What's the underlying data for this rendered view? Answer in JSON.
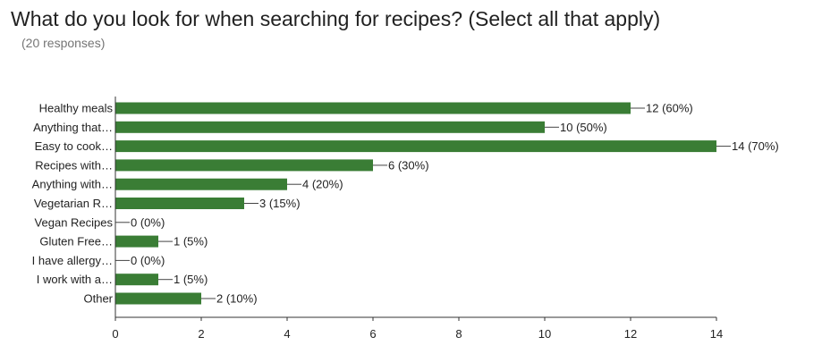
{
  "title": "What do you look for when searching for recipes? (Select all that apply)",
  "subtitle": "(20 responses)",
  "chart_data": {
    "type": "bar",
    "orientation": "horizontal",
    "categories": [
      "Healthy meals",
      "Anything that…",
      "Easy to cook…",
      "Recipes with…",
      "Anything with…",
      "Vegetarian R…",
      "Vegan Recipes",
      "Gluten Free…",
      "I have allergy…",
      "I work with a…",
      "Other"
    ],
    "values": [
      12,
      10,
      14,
      6,
      4,
      3,
      0,
      1,
      0,
      1,
      2
    ],
    "data_labels": [
      "12 (60%)",
      "10 (50%)",
      "14 (70%)",
      "6 (30%)",
      "4 (20%)",
      "3 (15%)",
      "0 (0%)",
      "1 (5%)",
      "0 (0%)",
      "1 (5%)",
      "2 (10%)"
    ],
    "x_ticks": [
      "0",
      "2",
      "4",
      "6",
      "8",
      "10",
      "12",
      "14"
    ],
    "xlim": [
      0,
      14
    ],
    "bar_color": "#3a7d35",
    "grid": false,
    "legend": "none"
  }
}
